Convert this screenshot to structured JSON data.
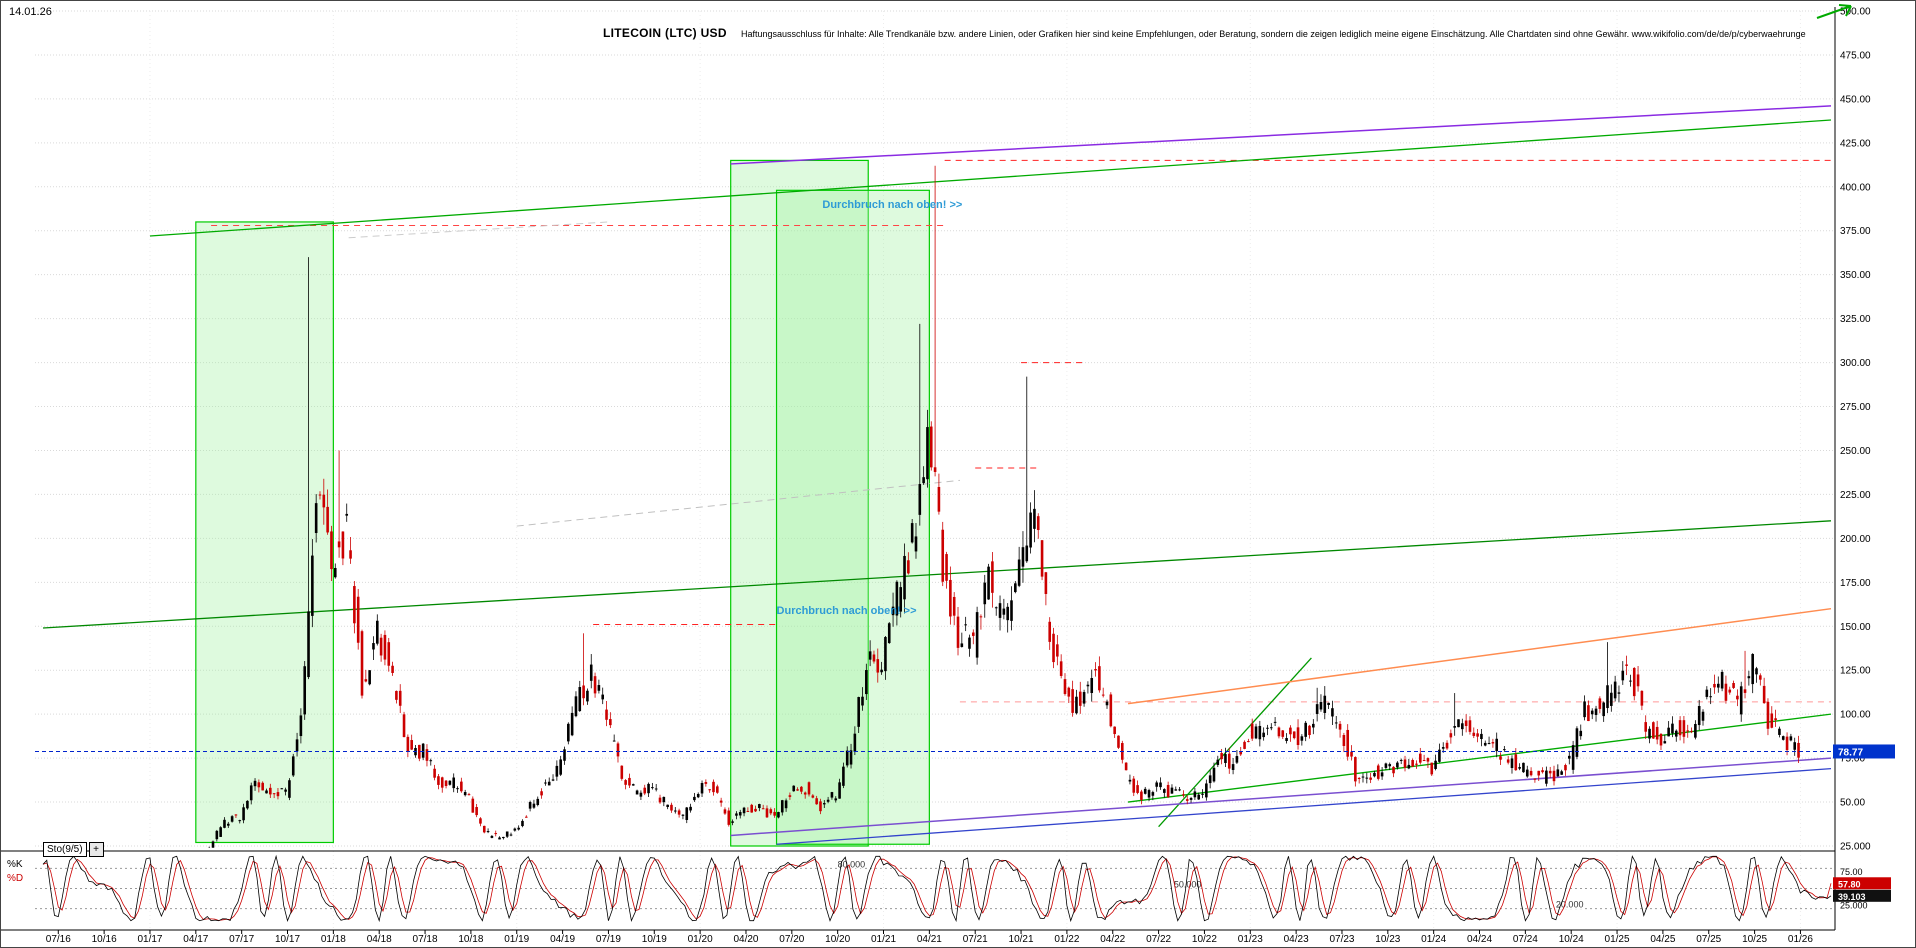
{
  "header": {
    "date": "14.01.26",
    "title": "LITECOIN (LTC) USD",
    "disclaimer": "Haftungsausschluss für Inhalte: Alle Trendkanäle bzw. andere Linien, oder Grafiken hier sind keine Empfehlungen, oder Beratung, sondern die zeigen lediglich meine eigene Einschätzung. Alle Chartdaten sind ohne Gewähr.  www.wikifolio.com/de/de/p/cyberwaehrunge"
  },
  "price_axis": {
    "labels": [
      "500.00",
      "475.00",
      "450.00",
      "425.00",
      "400.00",
      "375.00",
      "350.00",
      "325.00",
      "300.00",
      "275.00",
      "250.00",
      "225.00",
      "200.00",
      "175.00",
      "150.00",
      "125.00",
      "100.00",
      "75.00",
      "50.00",
      "25.000"
    ],
    "current_badge": {
      "value": "78.77",
      "bg": "#0033cc"
    }
  },
  "time_axis": {
    "labels": [
      "07/16",
      "10/16",
      "01/17",
      "04/17",
      "07/17",
      "10/17",
      "01/18",
      "04/18",
      "07/18",
      "10/18",
      "01/19",
      "04/19",
      "07/19",
      "10/19",
      "01/20",
      "04/20",
      "07/20",
      "10/20",
      "01/21",
      "04/21",
      "07/21",
      "10/21",
      "01/22",
      "04/22",
      "07/22",
      "10/22",
      "01/23",
      "04/23",
      "07/23",
      "10/23",
      "01/24",
      "04/24",
      "07/24",
      "10/24",
      "01/25",
      "04/25",
      "07/25",
      "10/25",
      "01/26"
    ]
  },
  "indicator": {
    "name": "Sto(9/5)",
    "add_button": "+",
    "k_label": "%K",
    "d_label": "%D",
    "k_value": "39.103",
    "d_value": "57.80",
    "k": 39.103,
    "d": 57.8,
    "k_color": "#000000",
    "d_color": "#cc0000",
    "levels": [
      {
        "v": 80,
        "label": "80.000",
        "at": "2020-10"
      },
      {
        "v": 50,
        "label": "50.000",
        "at": "2022-08"
      },
      {
        "v": 20,
        "label": "20.000",
        "at": "2024-09"
      }
    ],
    "axis_labels": [
      {
        "v": 75,
        "text": "75.00"
      },
      {
        "v": 25,
        "text": "25.000"
      }
    ]
  },
  "icons": {
    "top_right": "green-up-arrow"
  },
  "chart_data": {
    "type": "candlestick",
    "title": "LITECOIN (LTC) USD",
    "x_range": [
      "2016-06",
      "2026-03"
    ],
    "ylim": [
      25,
      500
    ],
    "y_tick_step": 25,
    "up_color": "#000000",
    "down_color": "#cc0000",
    "monthly": {
      "start": "2016-06",
      "closes": [
        4.5,
        4.1,
        3.8,
        3.9,
        3.9,
        3.8,
        4.3,
        3.9,
        3.8,
        6.2,
        14,
        25,
        39,
        42,
        61,
        54,
        55,
        95,
        232,
        182,
        206,
        117,
        148,
        118,
        81,
        79,
        62,
        61,
        52,
        32,
        30,
        33,
        47,
        61,
        73,
        107,
        122,
        99,
        64,
        56,
        58,
        47,
        41,
        58,
        59,
        39,
        46,
        46,
        41,
        56,
        58,
        46,
        55,
        82,
        126,
        132,
        166,
        197,
        266,
        185,
        144,
        140,
        176,
        152,
        191,
        210,
        146,
        109,
        105,
        124,
        98,
        64,
        53,
        59,
        55,
        53,
        55,
        76,
        70,
        89,
        94,
        90,
        87,
        91,
        109,
        93,
        65,
        66,
        69,
        71,
        73,
        68,
        84,
        99,
        84,
        83,
        74,
        68,
        64,
        66,
        72,
        101,
        104,
        116,
        126,
        92,
        85,
        96,
        86,
        111,
        117,
        106,
        131,
        96,
        86,
        78.77
      ],
      "spike_highs": {
        "2017-12": 360,
        "2018-02": 250,
        "2019-06": 146,
        "2021-04": 322,
        "2021-05": 412,
        "2021-11": 292,
        "2023-06": 115,
        "2024-03": 112,
        "2025-01": 141,
        "2025-10": 136
      }
    },
    "overlays": {
      "boxes": [
        {
          "from": "2017-04",
          "to": "2018-01",
          "low": 27,
          "high": 380
        },
        {
          "from": "2020-03",
          "to": "2020-12",
          "low": 25,
          "high": 415
        },
        {
          "from": "2020-06",
          "to": "2021-04",
          "low": 26,
          "high": 398
        }
      ],
      "trend_lines": [
        {
          "x1": "2017-01",
          "p1": 372,
          "x2": "2026-03",
          "p2": 438,
          "color": "#00aa00",
          "w": 1.3
        },
        {
          "x1": "2016-06",
          "p1": 149,
          "x2": "2026-03",
          "p2": 210,
          "color": "#008800",
          "w": 1.3
        },
        {
          "x1": "2022-05",
          "p1": 50,
          "x2": "2026-03",
          "p2": 100,
          "color": "#00aa00",
          "w": 1.3
        },
        {
          "x1": "2022-07",
          "p1": 36,
          "x2": "2023-05",
          "p2": 132,
          "color": "#009900",
          "w": 1.3
        },
        {
          "x1": "2020-03",
          "p1": 413,
          "x2": "2026-03",
          "p2": 446,
          "color": "#8a2be2",
          "w": 1.5
        },
        {
          "x1": "2020-03",
          "p1": 31,
          "x2": "2026-03",
          "p2": 75,
          "color": "#7a4fd0",
          "w": 1.5
        },
        {
          "x1": "2020-06",
          "p1": 26,
          "x2": "2026-03",
          "p2": 69,
          "color": "#3344cc",
          "w": 1.3
        },
        {
          "x1": "2022-05",
          "p1": 106,
          "x2": "2026-03",
          "p2": 160,
          "color": "#ff8c50",
          "w": 1.5
        },
        {
          "x1": "2019-01",
          "p1": 207,
          "x2": "2021-06",
          "p2": 233,
          "color": "#c0c0c0",
          "w": 1,
          "dash": "7,5"
        },
        {
          "x1": "2018-02",
          "p1": 371,
          "x2": "2019-07",
          "p2": 380,
          "color": "#cccccc",
          "w": 1,
          "dash": "7,5"
        }
      ],
      "h_lines": [
        {
          "p": 415,
          "from": "2021-05",
          "to": "2026-03",
          "color": "#ff2222"
        },
        {
          "p": 378,
          "from": "2017-05",
          "to": "2021-05",
          "color": "#ff4444"
        },
        {
          "p": 300,
          "from": "2021-10",
          "to": "2022-02",
          "color": "#ff2222"
        },
        {
          "p": 240,
          "from": "2021-07",
          "to": "2021-11",
          "color": "#ff2222"
        },
        {
          "p": 151,
          "from": "2019-06",
          "to": "2020-06",
          "color": "#ff2222"
        },
        {
          "p": 107,
          "from": "2021-06",
          "to": "2026-03",
          "color": "#ff9999"
        }
      ],
      "price_line": {
        "p": 78.77,
        "color": "#0022cc"
      },
      "annotations": [
        {
          "text": "Durchbruch nach oben! >>",
          "at": "2020-09",
          "p": 388,
          "color": "#2e9bd6"
        },
        {
          "text": "Durchbruch nach oben! >>",
          "at": "2020-06",
          "p": 157,
          "color": "#2e9bd6"
        }
      ]
    },
    "indicator": {
      "type": "stochastic",
      "params": "9/5",
      "k": 39.103,
      "d": 57.8,
      "range": [
        0,
        100
      ],
      "levels": [
        80,
        50,
        20
      ]
    }
  }
}
